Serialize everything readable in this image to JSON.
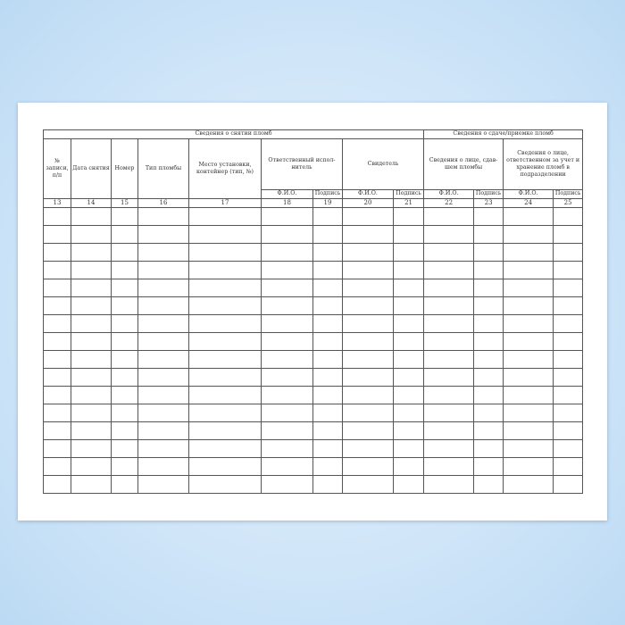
{
  "groups": {
    "removal": "Сведения о снятии пломб",
    "transfer": "Сведения о сдаче/приемке пломб"
  },
  "headers": {
    "c13": "№ записи, п/п",
    "c14": "Дата снятия",
    "c15": "Номер",
    "c16": "Тип пломбы",
    "c17": "Место установки, контейнер (тип, №)",
    "c18_19": "Ответственный испол-нитель",
    "c20_21": "Свидетель",
    "c22_23": "Сведения о лице, сдав-шем пломбы",
    "c24_25": "Сведения о лице, ответственном за учет и хранение пломб в подразделении"
  },
  "sub": {
    "fio": "Ф.И.О.",
    "sign": "Подпись"
  },
  "numbers": [
    "13",
    "14",
    "15",
    "16",
    "17",
    "18",
    "19",
    "20",
    "21",
    "22",
    "23",
    "24",
    "25"
  ]
}
